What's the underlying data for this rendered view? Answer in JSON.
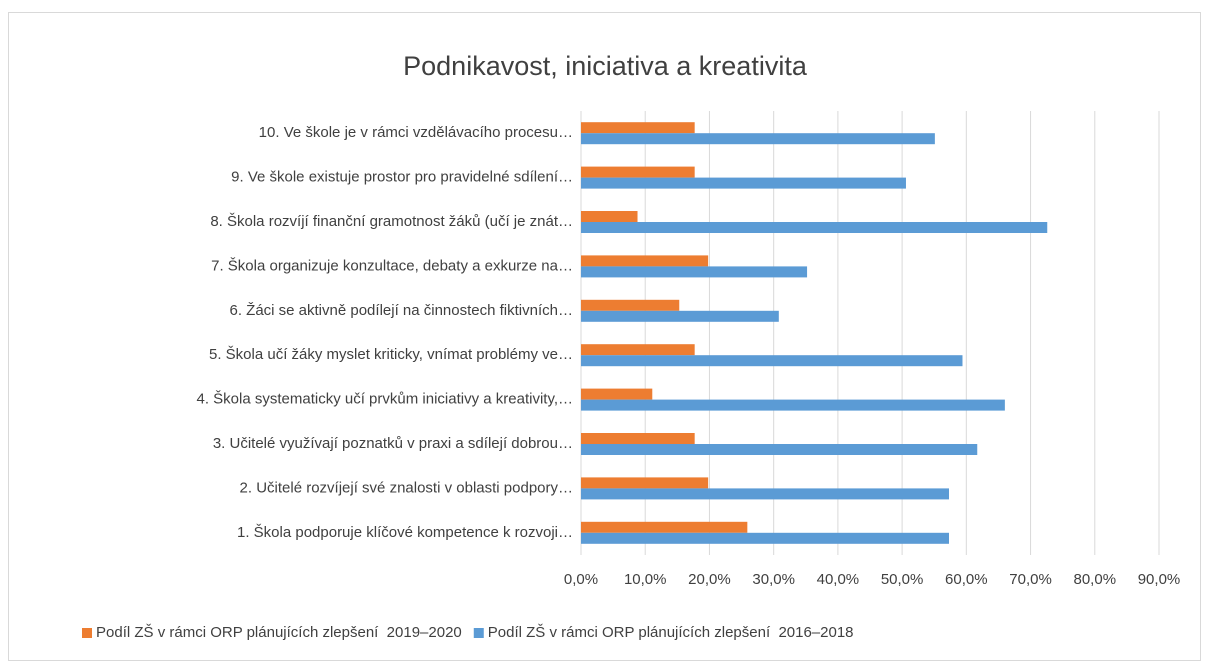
{
  "chart_data": {
    "type": "bar",
    "orientation": "horizontal",
    "title": "Podnikavost, iniciativa a kreativita",
    "categories": [
      "1. Škola podporuje klíčové kompetence k rozvoji…",
      "2. Učitelé rozvíjejí své znalosti v oblasti podpory…",
      "3. Učitelé využívají poznatků v praxi a sdílejí dobrou…",
      "4. Škola systematicky učí prvkům iniciativy a kreativity,…",
      "5. Škola učí žáky myslet kriticky, vnímat problémy ve…",
      "6. Žáci se aktivně podílejí na činnostech fiktivních…",
      "7. Škola organizuje konzultace, debaty a exkurze na…",
      "8. Škola rozvíjí finanční gramotnost žáků (učí je znát…",
      "9. Ve škole existuje prostor pro pravidelné sdílení…",
      "10. Ve škole je v rámci vzdělávacího procesu…"
    ],
    "series": [
      {
        "name": "Podíl ZŠ v rámci ORP plánujících zlepšení  2019–2020",
        "color": "#ed7d31",
        "values": [
          25.9,
          19.8,
          17.7,
          11.1,
          17.7,
          15.3,
          19.8,
          8.8,
          17.7,
          17.7
        ]
      },
      {
        "name": "Podíl ZŠ v rámci ORP plánujících zlepšení  2016–2018",
        "color": "#5b9bd5",
        "values": [
          57.3,
          57.3,
          61.7,
          66.0,
          59.4,
          30.8,
          35.2,
          72.6,
          50.6,
          55.1
        ]
      }
    ],
    "xlim": [
      0,
      90
    ],
    "xticks": [
      {
        "value": 0,
        "label": "0,0%"
      },
      {
        "value": 10,
        "label": "10,0%"
      },
      {
        "value": 20,
        "label": "20,0%"
      },
      {
        "value": 30,
        "label": "30,0%"
      },
      {
        "value": 40,
        "label": "40,0%"
      },
      {
        "value": 50,
        "label": "50,0%"
      },
      {
        "value": 60,
        "label": "60,0%"
      },
      {
        "value": 70,
        "label": "70,0%"
      },
      {
        "value": 80,
        "label": "80,0%"
      },
      {
        "value": 90,
        "label": "90,0%"
      }
    ],
    "grid": true,
    "legend": "bottom"
  }
}
